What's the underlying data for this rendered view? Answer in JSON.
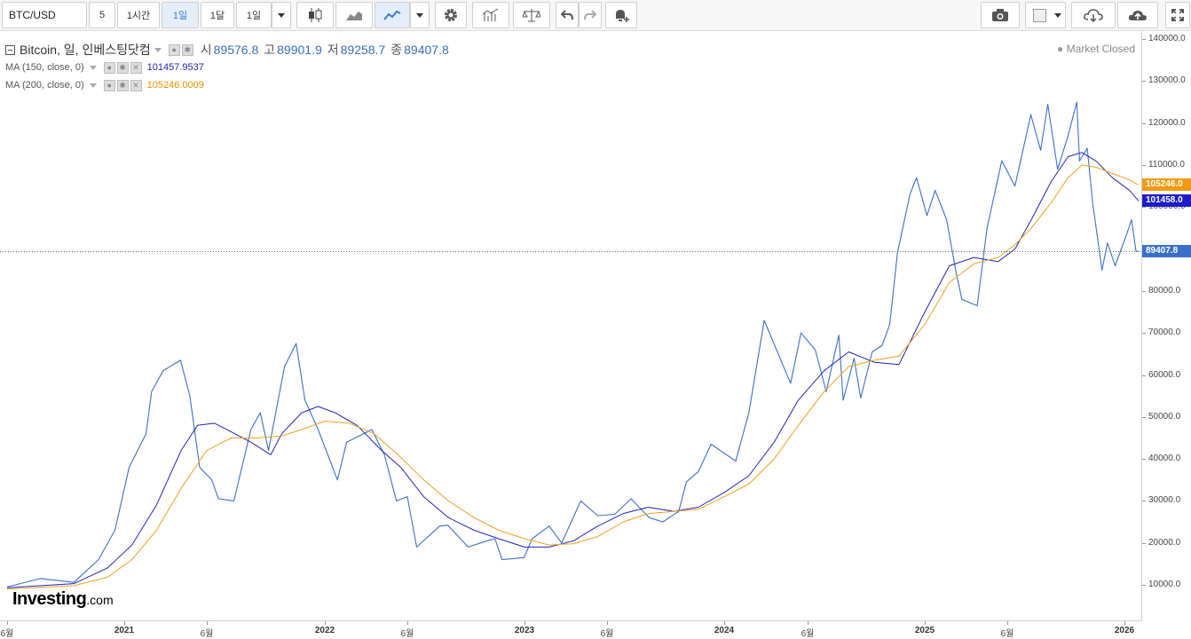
{
  "toolbar": {
    "symbol": "BTC/USD",
    "interval_buttons": [
      "5",
      "1시간",
      "1일",
      "1달",
      "1일"
    ],
    "active_interval": "1일"
  },
  "legend": {
    "title": "Bitcoin, 일, 인베스팅닷컴",
    "open_label": "시",
    "open": "89576.8",
    "high_label": "고",
    "high": "89901.9",
    "low_label": "저",
    "low": "89258.7",
    "close_label": "종",
    "close": "89407.8",
    "ma150_label": "MA (150, close, 0)",
    "ma150_value": "101457.9537",
    "ma200_label": "MA (200, close, 0)",
    "ma200_value": "105246.0009"
  },
  "status": {
    "market": "Market Closed"
  },
  "price_tags": {
    "ma200": "105246.0",
    "ma150": "101458.0",
    "last": "89407.8"
  },
  "colors": {
    "price": "#3a6fc8",
    "ma150": "#2323b8",
    "ma200": "#f0a020",
    "last_tag": "#3a6fc8",
    "ma150_tag": "#1c1cc8",
    "ma200_tag": "#f29a12"
  },
  "logo": {
    "name": "Investing",
    "suffix": ".com"
  },
  "chart_data": {
    "type": "line",
    "ylim": [
      0,
      140000
    ],
    "y_ticks": [
      10000,
      20000,
      30000,
      40000,
      50000,
      60000,
      70000,
      80000,
      90000,
      100000,
      110000,
      120000,
      130000,
      140000
    ],
    "x_ticks": [
      "6월",
      "2021",
      "6월",
      "2022",
      "6월",
      "2023",
      "6월",
      "2024",
      "6월",
      "2025",
      "6월",
      "2026"
    ],
    "x_tick_dates": [
      "2020-06-01",
      "2021-01-01",
      "2021-06-01",
      "2022-01-01",
      "2022-06-01",
      "2023-01-01",
      "2023-06-01",
      "2024-01-01",
      "2024-06-01",
      "2025-01-01",
      "2025-06-01",
      "2026-01-01"
    ],
    "series": [
      {
        "name": "Bitcoin",
        "x": [
          "2020-06-01",
          "2020-08-01",
          "2020-10-01",
          "2020-11-15",
          "2020-12-15",
          "2021-01-10",
          "2021-02-10",
          "2021-02-20",
          "2021-03-13",
          "2021-04-14",
          "2021-05-01",
          "2021-05-19",
          "2021-06-10",
          "2021-06-22",
          "2021-07-20",
          "2021-08-20",
          "2021-09-06",
          "2021-09-21",
          "2021-10-20",
          "2021-11-10",
          "2021-11-26",
          "2021-12-20",
          "2022-01-24",
          "2022-02-10",
          "2022-03-28",
          "2022-04-20",
          "2022-05-12",
          "2022-06-01",
          "2022-06-18",
          "2022-07-30",
          "2022-08-14",
          "2022-09-20",
          "2022-10-25",
          "2022-11-08",
          "2022-11-21",
          "2022-12-31",
          "2023-01-15",
          "2023-02-15",
          "2023-03-10",
          "2023-04-14",
          "2023-05-15",
          "2023-06-15",
          "2023-07-15",
          "2023-08-17",
          "2023-09-11",
          "2023-10-10",
          "2023-10-24",
          "2023-11-15",
          "2023-12-08",
          "2024-01-22",
          "2024-02-15",
          "2024-03-14",
          "2024-04-15",
          "2024-05-01",
          "2024-05-20",
          "2024-06-15",
          "2024-07-05",
          "2024-07-28",
          "2024-08-05",
          "2024-08-25",
          "2024-09-06",
          "2024-09-27",
          "2024-10-15",
          "2024-10-29",
          "2024-11-12",
          "2024-12-05",
          "2024-12-17",
          "2025-01-05",
          "2025-01-20",
          "2025-02-10",
          "2025-02-28",
          "2025-03-10",
          "2025-04-07",
          "2025-04-25",
          "2025-05-22",
          "2025-06-15",
          "2025-07-14",
          "2025-08-01",
          "2025-08-14",
          "2025-09-01",
          "2025-09-20",
          "2025-10-06",
          "2025-10-11",
          "2025-10-25",
          "2025-11-04",
          "2025-11-21",
          "2025-12-01",
          "2025-12-15",
          "2026-01-05",
          "2026-01-14",
          "2026-01-22",
          "2026-01-27"
        ],
        "values": [
          9500,
          11500,
          10600,
          16000,
          23000,
          38000,
          46000,
          56000,
          61000,
          63500,
          55000,
          38000,
          35000,
          30500,
          30000,
          47000,
          51000,
          42000,
          62000,
          67500,
          54000,
          47000,
          35000,
          44000,
          47000,
          41000,
          30000,
          31000,
          19000,
          24000,
          24200,
          19000,
          20500,
          21000,
          16000,
          16500,
          21000,
          24000,
          20000,
          30000,
          26500,
          26800,
          30500,
          26000,
          25000,
          27500,
          34500,
          37000,
          43500,
          39500,
          51000,
          73000,
          63000,
          58000,
          70000,
          66000,
          56000,
          69500,
          54000,
          64000,
          54500,
          65500,
          67000,
          72000,
          89000,
          103000,
          107000,
          98000,
          104000,
          97000,
          84000,
          78000,
          76500,
          95000,
          111000,
          105000,
          122000,
          113500,
          124500,
          109000,
          117000,
          125000,
          111000,
          114000,
          101000,
          85000,
          91500,
          86000,
          93500,
          97000,
          89500,
          89407.8
        ]
      },
      {
        "name": "MA (150, close, 0)",
        "x": [
          "2020-06-01",
          "2020-10-01",
          "2020-12-01",
          "2021-01-15",
          "2021-03-01",
          "2021-04-15",
          "2021-05-15",
          "2021-06-15",
          "2021-07-15",
          "2021-08-20",
          "2021-09-25",
          "2021-10-15",
          "2021-11-20",
          "2021-12-20",
          "2022-01-20",
          "2022-03-01",
          "2022-04-15",
          "2022-05-20",
          "2022-07-01",
          "2022-08-15",
          "2022-10-01",
          "2022-11-15",
          "2023-01-01",
          "2023-02-15",
          "2023-04-01",
          "2023-05-15",
          "2023-07-01",
          "2023-08-15",
          "2023-10-01",
          "2023-11-15",
          "2024-01-01",
          "2024-02-15",
          "2024-04-01",
          "2024-05-15",
          "2024-07-01",
          "2024-08-15",
          "2024-10-01",
          "2024-11-15",
          "2025-01-01",
          "2025-02-15",
          "2025-04-01",
          "2025-05-15",
          "2025-06-15",
          "2025-07-15",
          "2025-08-20",
          "2025-09-20",
          "2025-10-15",
          "2025-11-10",
          "2025-12-10",
          "2026-01-10",
          "2026-01-27"
        ],
        "values": [
          9300,
          10300,
          14000,
          19500,
          29000,
          42000,
          48000,
          48500,
          46500,
          44000,
          41000,
          46000,
          51000,
          52500,
          51000,
          48000,
          42000,
          38000,
          31000,
          26000,
          23000,
          21000,
          19000,
          19000,
          20500,
          24000,
          27000,
          28500,
          27500,
          28500,
          32000,
          36000,
          44000,
          54000,
          61000,
          65500,
          63000,
          62500,
          75000,
          86000,
          88000,
          87000,
          90000,
          97000,
          106000,
          112000,
          113000,
          111000,
          107000,
          104000,
          101458
        ]
      },
      {
        "name": "MA (200, close, 0)",
        "x": [
          "2020-06-01",
          "2020-10-01",
          "2020-12-01",
          "2021-01-15",
          "2021-03-01",
          "2021-04-15",
          "2021-06-01",
          "2021-07-15",
          "2021-09-01",
          "2021-10-15",
          "2021-11-20",
          "2022-01-01",
          "2022-02-15",
          "2022-04-01",
          "2022-05-15",
          "2022-07-01",
          "2022-08-15",
          "2022-10-01",
          "2022-11-15",
          "2023-01-01",
          "2023-02-15",
          "2023-04-01",
          "2023-05-15",
          "2023-07-01",
          "2023-08-15",
          "2023-10-01",
          "2023-11-15",
          "2024-01-01",
          "2024-02-15",
          "2024-04-01",
          "2024-05-15",
          "2024-07-01",
          "2024-08-15",
          "2024-10-01",
          "2024-11-15",
          "2025-01-01",
          "2025-02-15",
          "2025-04-01",
          "2025-05-15",
          "2025-06-15",
          "2025-07-15",
          "2025-08-20",
          "2025-09-20",
          "2025-10-15",
          "2025-11-10",
          "2025-12-10",
          "2026-01-10",
          "2026-01-27"
        ],
        "values": [
          9000,
          9800,
          11800,
          16000,
          23000,
          33000,
          42000,
          45000,
          45000,
          45500,
          47000,
          49000,
          48500,
          46000,
          41000,
          35000,
          30000,
          26000,
          23000,
          21000,
          19500,
          19800,
          21500,
          25000,
          27000,
          27500,
          28000,
          31000,
          34000,
          40000,
          48000,
          56000,
          62000,
          63500,
          64500,
          72000,
          82000,
          86500,
          88000,
          91000,
          95000,
          101000,
          107000,
          110000,
          109500,
          108000,
          106500,
          105246
        ]
      }
    ]
  }
}
